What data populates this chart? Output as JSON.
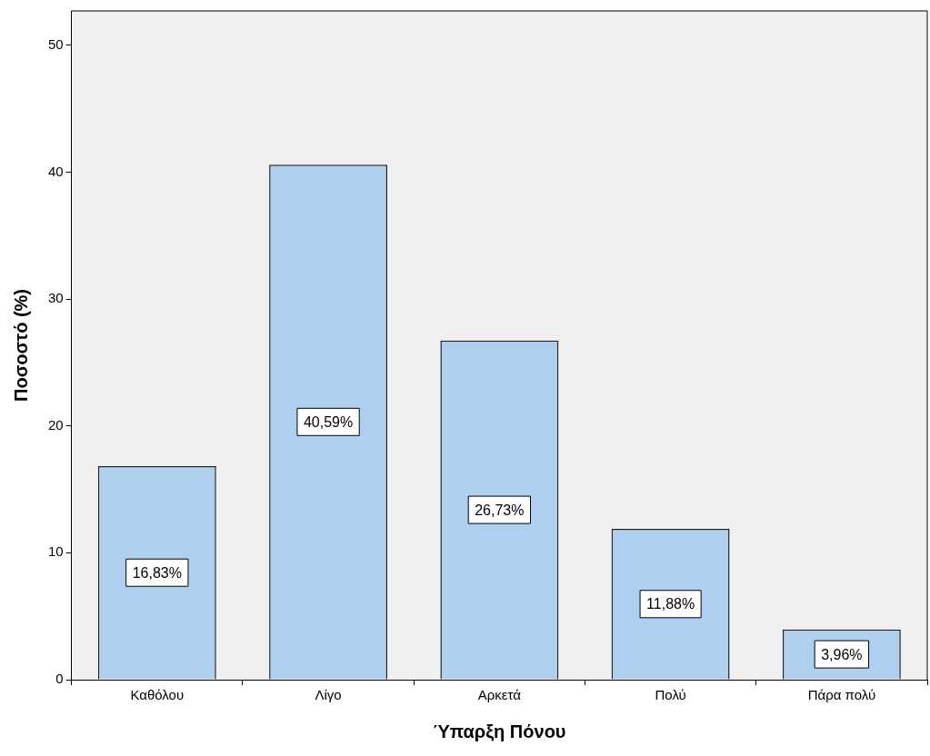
{
  "chart_data": {
    "type": "bar",
    "xlabel": "Ύπαρξη Πόνου",
    "ylabel": "Ποσοστό (%)",
    "categories": [
      "Καθόλου",
      "Λίγο",
      "Αρκετά",
      "Πολύ",
      "Πάρα πολύ"
    ],
    "values": [
      16.83,
      40.59,
      26.73,
      11.88,
      3.96
    ],
    "value_labels": [
      "16,83%",
      "40,59%",
      "26,73%",
      "11,88%",
      "3,96%"
    ],
    "color": "#aecfee",
    "ylim": [
      0,
      52.7
    ],
    "yticks": [
      0,
      10,
      20,
      30,
      40,
      50
    ],
    "grid": false,
    "legend": false
  }
}
